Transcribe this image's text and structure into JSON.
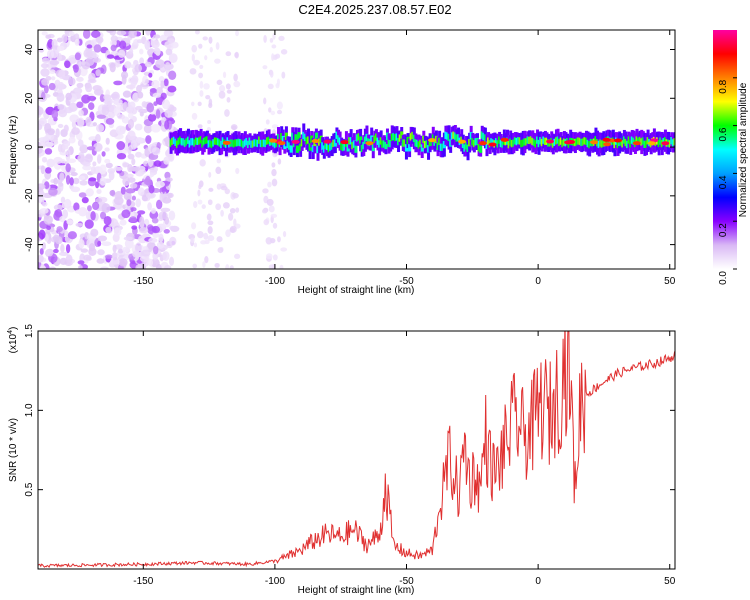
{
  "title": "C2E4.2025.237.08.57.E02",
  "chart_data": [
    {
      "type": "heatmap",
      "xlabel": "Height of straight line (km)",
      "ylabel": "Frequency (Hz)",
      "xlim": [
        -190,
        52
      ],
      "ylim": [
        -50,
        48
      ],
      "xticks": [
        -150,
        -100,
        -50,
        0,
        50
      ],
      "yticks": [
        -40,
        -20,
        0,
        20,
        40
      ],
      "colorbar": {
        "label": "Normalized spectral amplitude",
        "range": [
          0,
          1
        ],
        "ticks": [
          0.0,
          0.2,
          0.4,
          0.6,
          0.8
        ],
        "colors": [
          "#ffffff",
          "#d9b8f5",
          "#8800ff",
          "#0000ff",
          "#00a0ff",
          "#00ffff",
          "#00ff00",
          "#ffff00",
          "#ff8000",
          "#ff0000",
          "#ff00a0"
        ]
      },
      "regions": [
        {
          "name": "noise",
          "x": [
            -190,
            -138
          ],
          "amplitude": 0.12
        },
        {
          "name": "sparse-noise",
          "x": [
            -138,
            -95
          ],
          "amplitude": 0.05
        },
        {
          "name": "signal-band",
          "x": [
            -140,
            52
          ],
          "center_hz": 2,
          "amplitude": 0.6
        }
      ]
    },
    {
      "type": "line",
      "xlabel": "Height of straight line (km)",
      "ylabel": "SNR (10 * v/v)",
      "scale_label": "(x10",
      "scale_exp": "4",
      "scale_close": ")",
      "xlim": [
        -190,
        52
      ],
      "ylim": [
        0,
        1.5
      ],
      "xticks": [
        -150,
        -100,
        -50,
        0,
        50
      ],
      "yticks": [
        0.5,
        1.0,
        1.5
      ],
      "yticklabels": [
        "0.5",
        "1.0",
        "1.5"
      ],
      "series": [
        {
          "name": "SNR",
          "color": "#e03030",
          "x": [
            -190,
            -150,
            -130,
            -110,
            -100,
            -95,
            -90,
            -85,
            -80,
            -75,
            -70,
            -65,
            -60,
            -58,
            -55,
            -50,
            -45,
            -40,
            -38,
            -36,
            -34,
            -32,
            -30,
            -28,
            -26,
            -24,
            -22,
            -20,
            -18,
            -16,
            -14,
            -12,
            -10,
            -8,
            -6,
            -4,
            -2,
            0,
            2,
            4,
            6,
            8,
            10,
            12,
            14,
            16,
            18,
            20,
            25,
            30,
            35,
            40,
            45,
            50,
            52
          ],
          "values": [
            0.02,
            0.03,
            0.04,
            0.03,
            0.05,
            0.08,
            0.12,
            0.18,
            0.22,
            0.2,
            0.25,
            0.15,
            0.22,
            0.55,
            0.15,
            0.1,
            0.08,
            0.12,
            0.35,
            0.5,
            0.7,
            0.6,
            0.45,
            0.8,
            0.55,
            0.6,
            0.5,
            0.85,
            0.65,
            0.6,
            0.7,
            0.8,
            0.9,
            0.95,
            0.85,
            0.85,
            0.9,
            1.0,
            1.05,
            0.95,
            1.05,
            1.1,
            1.3,
            1.25,
            0.5,
            1.05,
            1.1,
            1.12,
            1.18,
            1.23,
            1.26,
            1.28,
            1.3,
            1.33,
            1.35
          ]
        }
      ]
    }
  ]
}
